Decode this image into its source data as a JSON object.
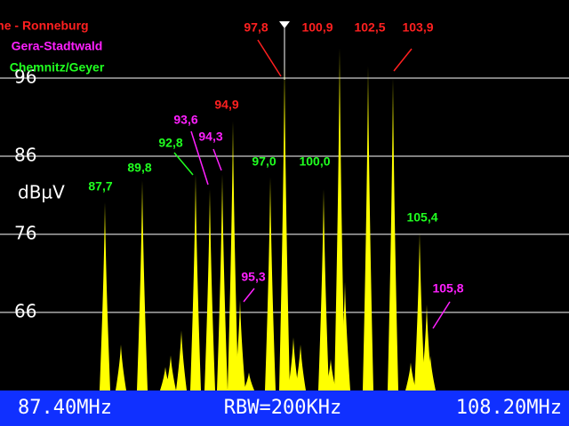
{
  "chart_data": {
    "type": "spectrum",
    "y_label": "dBµV",
    "ylim": [
      56,
      106
    ],
    "yticks": [
      66,
      76,
      86,
      96
    ],
    "grid": true,
    "xlim": [
      81.8,
      113.8
    ],
    "bar_color": "#ffff00",
    "series": [
      {
        "name": "Südantenne - Ronneburg",
        "color": "#ff2020",
        "x": [
          94.9,
          97.8,
          100.9,
          102.5,
          103.9
        ],
        "x_labels": [
          "94,9",
          "97,8",
          "100,9",
          "102,5",
          "103,9"
        ],
        "values": [
          90.5,
          97.8,
          99.8,
          97.5,
          96.0
        ]
      },
      {
        "name": "Gera-Stadtwald",
        "color": "#ff20ff",
        "x": [
          93.6,
          94.3,
          95.3,
          105.8
        ],
        "x_labels": [
          "93,6",
          "94,3",
          "95,3",
          "105,8"
        ],
        "values": [
          81.8,
          83.7,
          67.6,
          67.0
        ]
      },
      {
        "name": "Chemnitz/Geyer",
        "color": "#20ff20",
        "x": [
          87.7,
          89.8,
          92.8,
          97.0,
          100.0,
          105.4
        ],
        "x_labels": [
          "87,7",
          "89,8",
          "92,8",
          "97,0",
          "100,0",
          "105,4"
        ],
        "values": [
          80.1,
          82.9,
          83.7,
          83.3,
          81.8,
          76.2
        ]
      }
    ],
    "other_peaks": {
      "x": [
        88.6,
        91.1,
        91.4,
        92.0,
        95.8,
        98.3,
        98.7,
        100.4,
        101.2,
        104.9,
        106.0
      ],
      "values": [
        61.9,
        59.0,
        60.5,
        63.7,
        58.3,
        62.8,
        61.9,
        60.0,
        69.9,
        59.6,
        60.5
      ]
    },
    "status_bar": {
      "start": "87.40MHz",
      "rbw": "RBW=200KHz",
      "stop": "108.20MHz"
    }
  }
}
